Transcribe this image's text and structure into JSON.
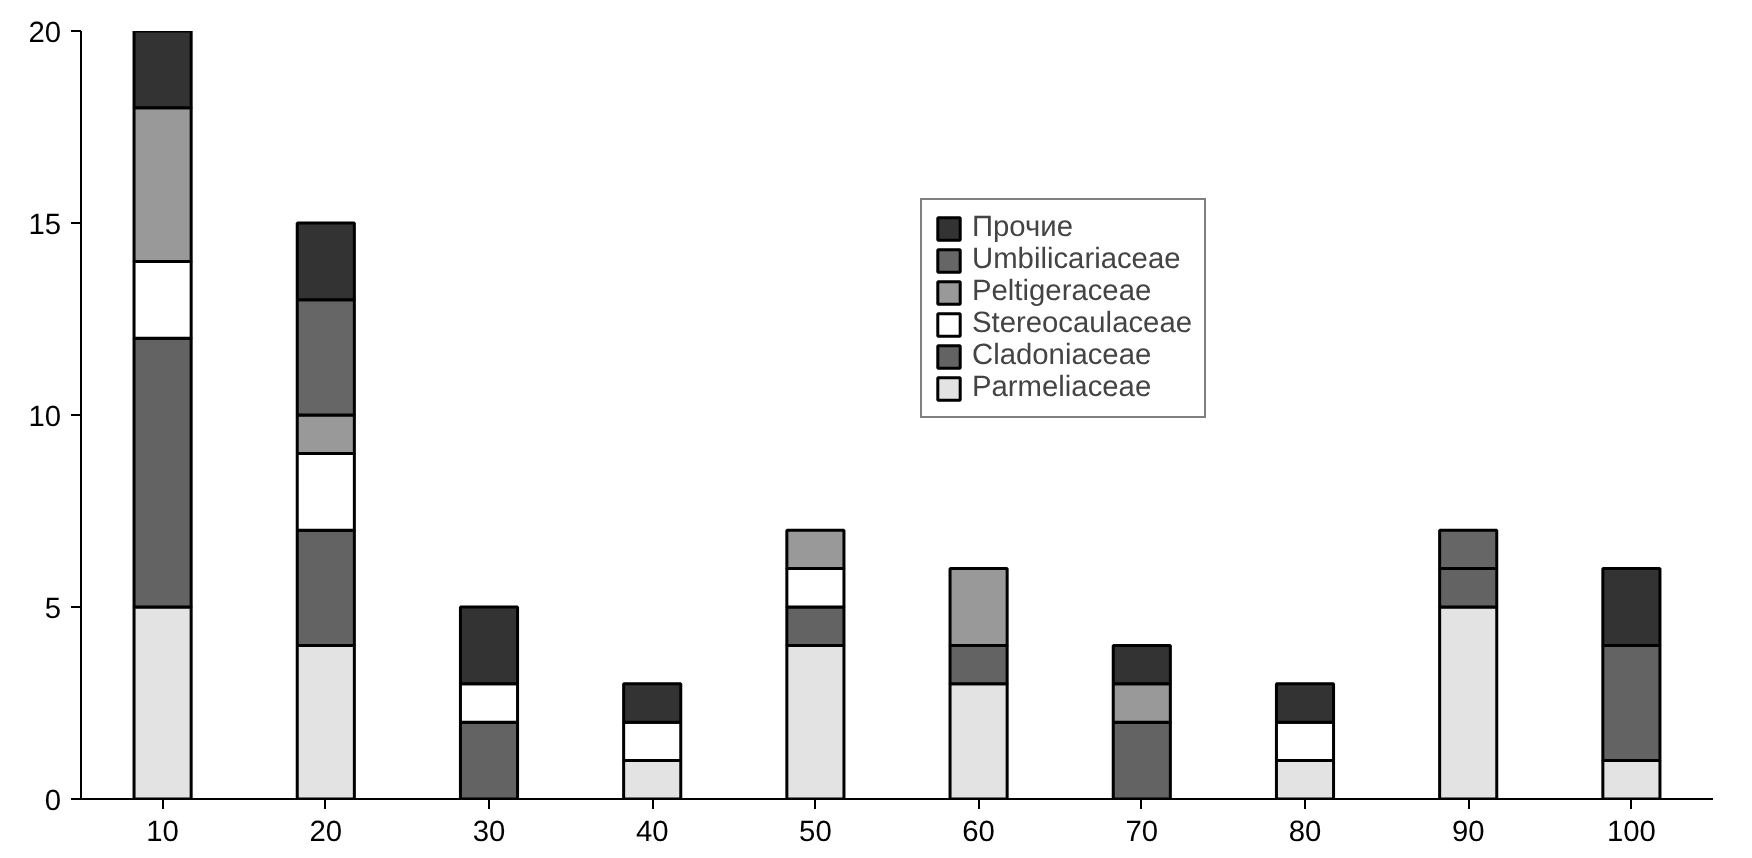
{
  "chart_data": {
    "type": "bar",
    "stacked": true,
    "categories": [
      "10",
      "20",
      "30",
      "40",
      "50",
      "60",
      "70",
      "80",
      "90",
      "100"
    ],
    "series": [
      {
        "name": "Parmeliaceae",
        "color": "#e3e3e3",
        "values": [
          5,
          4,
          0,
          1,
          4,
          3,
          0,
          1,
          5,
          1
        ]
      },
      {
        "name": "Cladoniaceae",
        "color": "#636363",
        "values": [
          7,
          3,
          2,
          0,
          1,
          1,
          2,
          0,
          1,
          3
        ]
      },
      {
        "name": "Stereocaulaceae",
        "color": "#ffffff",
        "values": [
          2,
          2,
          1,
          1,
          1,
          0,
          0,
          1,
          0,
          0
        ]
      },
      {
        "name": "Peltigeraceae",
        "color": "#999999",
        "values": [
          4,
          1,
          0,
          0,
          1,
          2,
          1,
          0,
          0,
          0
        ]
      },
      {
        "name": "Umbilicariaceae",
        "color": "#666666",
        "values": [
          0,
          3,
          0,
          0,
          0,
          0,
          0,
          0,
          1,
          0
        ]
      },
      {
        "name": "Прочие",
        "color": "#333333",
        "values": [
          2,
          2,
          2,
          1,
          0,
          0,
          1,
          1,
          0,
          2
        ]
      }
    ],
    "ylim": [
      0,
      20
    ],
    "yticks": [
      0,
      5,
      10,
      15,
      20
    ],
    "grid": false,
    "legend": "top right"
  }
}
